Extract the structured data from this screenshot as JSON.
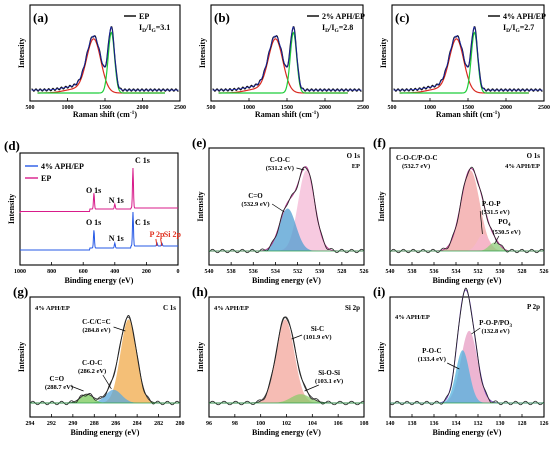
{
  "colors": {
    "raman_fit_red": "#d92b22",
    "raman_fit_green": "#1fce3a",
    "raman_data": "#111111",
    "raman_ep_line": "#1c2bd0",
    "survey_ep": "#d81b8a",
    "survey_aph": "#2659e6",
    "o1s_ep_main": "#f4b8d6",
    "o1s_ep_sub": "#4f9ed1",
    "o1s_aph_main": "#f2a2a2",
    "o1s_aph_pop": "#f6b7cf",
    "o1s_aph_po4": "#8fcc7a",
    "c1s_main": "#f0a94a",
    "c1s_coc": "#5ba8dc",
    "c1s_co": "#7ac95a",
    "si2p_main": "#f3a59b",
    "si2p_sio": "#8cc96b",
    "p2p_pop": "#e79cc3",
    "p2p_poc": "#52b2de"
  },
  "panels": {
    "a": {
      "label": "(a)",
      "legend": "EP",
      "ratio_sub": "D",
      "ratio_sub2": "G",
      "ratio_val": "=3.1"
    },
    "b": {
      "label": "(b)",
      "legend": "2% APH/EP",
      "ratio_sub": "D",
      "ratio_sub2": "G",
      "ratio_val": "=2.8"
    },
    "c": {
      "label": "(c)",
      "legend": "4% APH/EP",
      "ratio_sub": "D",
      "ratio_sub2": "G",
      "ratio_val": "=2.7"
    },
    "d": {
      "label": "(d)"
    },
    "e": {
      "label": "(e)"
    },
    "f": {
      "label": "(f)"
    },
    "g": {
      "label": "(g)"
    },
    "h": {
      "label": "(h)"
    },
    "i": {
      "label": "(i)"
    }
  },
  "chart_data": [
    {
      "panel": "a",
      "type": "line",
      "xlabel": "Raman shift (cm⁻¹)",
      "ylabel": "Intensity",
      "xlim": [
        500,
        2500
      ],
      "xticks": [
        500,
        1000,
        1500,
        2000,
        2500
      ],
      "I_D_over_I_G": 3.1,
      "series": [
        {
          "name": "EP",
          "x": [
            500,
            900,
            1000,
            1100,
            1200,
            1300,
            1350,
            1400,
            1450,
            1500,
            1550,
            1590,
            1650,
            1700,
            1800,
            2000,
            2500
          ],
          "y": [
            0.05,
            0.08,
            0.12,
            0.25,
            0.48,
            0.7,
            0.74,
            0.66,
            0.56,
            0.66,
            0.9,
            0.98,
            0.55,
            0.25,
            0.1,
            0.06,
            0.05
          ]
        }
      ]
    },
    {
      "panel": "b",
      "type": "line",
      "xlabel": "Raman shift (cm⁻¹)",
      "ylabel": "Intensity",
      "xlim": [
        500,
        2500
      ],
      "xticks": [
        500,
        1000,
        1500,
        2000,
        2500
      ],
      "I_D_over_I_G": 2.8,
      "series": [
        {
          "name": "2% APH/EP",
          "x": [
            500,
            900,
            1000,
            1100,
            1200,
            1300,
            1350,
            1400,
            1450,
            1500,
            1550,
            1590,
            1650,
            1700,
            1800,
            2000,
            2500
          ],
          "y": [
            0.05,
            0.07,
            0.1,
            0.22,
            0.45,
            0.68,
            0.73,
            0.66,
            0.55,
            0.64,
            0.88,
            0.98,
            0.55,
            0.25,
            0.1,
            0.06,
            0.05
          ]
        }
      ]
    },
    {
      "panel": "c",
      "type": "line",
      "xlabel": "Raman shift (cm⁻¹)",
      "ylabel": "Intensity",
      "xlim": [
        500,
        2500
      ],
      "xticks": [
        500,
        1000,
        1500,
        2000,
        2500
      ],
      "I_D_over_I_G": 2.7,
      "series": [
        {
          "name": "4% APH/EP",
          "x": [
            500,
            900,
            1000,
            1100,
            1200,
            1300,
            1350,
            1400,
            1450,
            1500,
            1550,
            1590,
            1650,
            1700,
            1800,
            2000,
            2500
          ],
          "y": [
            0.06,
            0.07,
            0.1,
            0.22,
            0.44,
            0.68,
            0.72,
            0.65,
            0.56,
            0.66,
            0.9,
            0.98,
            0.55,
            0.25,
            0.1,
            0.06,
            0.05
          ]
        }
      ]
    },
    {
      "panel": "d",
      "type": "line",
      "xlabel": "Binding energy (eV)",
      "ylabel": "Intensity",
      "xlim": [
        1000,
        0
      ],
      "xticks": [
        1000,
        800,
        600,
        400,
        200,
        0
      ],
      "series": [
        {
          "name": "4% APH/EP",
          "peaks": [
            "O 1s",
            "N 1s",
            "C 1s",
            "P 2p",
            "Si 2p"
          ]
        },
        {
          "name": "EP",
          "peaks": [
            "O 1s",
            "N 1s",
            "C 1s"
          ]
        }
      ],
      "annotations": [
        "C 1s",
        "O 1s",
        "N 1s",
        "O 1s",
        "N 1s",
        "C 1s",
        "P 2p",
        "Si 2p"
      ]
    },
    {
      "panel": "e",
      "type": "line",
      "xlabel": "Binding energy (eV)",
      "ylabel": "Intensity",
      "xlim": [
        540,
        526
      ],
      "xticks": [
        540,
        538,
        536,
        534,
        532,
        530,
        528,
        526
      ],
      "title_right": "O 1s",
      "subtitle_right": "EP",
      "peaks": [
        {
          "name": "C-O-C",
          "center": 531.2
        },
        {
          "name": "C=O",
          "center": 532.9
        }
      ]
    },
    {
      "panel": "f",
      "type": "line",
      "xlabel": "Binding energy (eV)",
      "ylabel": "Intensity",
      "xlim": [
        540,
        526
      ],
      "xticks": [
        540,
        538,
        536,
        534,
        532,
        530,
        528,
        526
      ],
      "title_right": "O 1s",
      "subtitle_right": "4% APH/EP",
      "peaks": [
        {
          "name": "C-O-C/P-O-C",
          "center": 532.7
        },
        {
          "name": "P-O-P",
          "center": 531.5
        },
        {
          "name": "PO4",
          "center": 530.5
        }
      ]
    },
    {
      "panel": "g",
      "type": "line",
      "xlabel": "Binding energy (eV)",
      "ylabel": "Intensity",
      "xlim": [
        294,
        280
      ],
      "xticks": [
        294,
        292,
        290,
        288,
        286,
        284,
        282,
        280
      ],
      "title_left": "4% APH/EP",
      "title_right": "C 1s",
      "peaks": [
        {
          "name": "C-C/C=C",
          "center": 284.8
        },
        {
          "name": "C-O-C",
          "center": 286.2
        },
        {
          "name": "C=O",
          "center": 288.7
        }
      ]
    },
    {
      "panel": "h",
      "type": "line",
      "xlabel": "Binding energy (eV)",
      "ylabel": "Intensity",
      "xlim": [
        96,
        108
      ],
      "xticks": [
        96,
        98,
        100,
        102,
        104,
        106,
        108
      ],
      "title_left": "4% APH/EP",
      "title_right": "Si 2p",
      "peaks": [
        {
          "name": "Si-C",
          "center": 101.9
        },
        {
          "name": "Si-O-Si",
          "center": 103.1
        }
      ]
    },
    {
      "panel": "i",
      "type": "line",
      "xlabel": "Binding energy (eV)",
      "ylabel": "Intensity",
      "xlim": [
        140,
        126
      ],
      "xticks": [
        140,
        138,
        136,
        134,
        132,
        130,
        128,
        126
      ],
      "title_left": "4% APH/EP",
      "title_right": "P 2p",
      "peaks": [
        {
          "name": "P-O-P/PO3",
          "center": 132.8
        },
        {
          "name": "P-O-C",
          "center": 133.4
        }
      ]
    }
  ],
  "text": {
    "raman_xlabel": "Raman shift (cm",
    "raman_xlabel_sup": "-1",
    "raman_xlabel_end": ")",
    "ylabel": "Intensity",
    "be_xlabel": "Binding energy (eV)",
    "ratio_I": "I",
    "ratio_slash": "/I",
    "d_legend_1": "4% APH/EP",
    "d_legend_2": "EP",
    "d_c1s_top": "C 1s",
    "d_o1s_a": "O 1s",
    "d_n1s_a": "N 1s",
    "d_o1s_b": "O 1s",
    "d_n1s_b": "N 1s",
    "d_c1s_b": "C 1s",
    "d_p2p": "P 2p",
    "d_si2p": "Si 2p",
    "e_title": "O 1s",
    "e_sub": "EP",
    "e_coc": "C-O-C",
    "e_coc_val": "(531.2 eV)",
    "e_co": "C=O",
    "e_co_val": "(532.9 eV)",
    "f_title": "O 1s",
    "f_sub": "4% APH/EP",
    "f_cocpoc": "C-O-C/P-O-C",
    "f_cocpoc_val": "(532.7 eV)",
    "f_pop": "P-O-P",
    "f_pop_val": "(531.5 eV)",
    "f_po4": "PO",
    "f_po4_sub": "4",
    "f_po4_val": "(530.5 eV)",
    "g_left": "4% APH/EP",
    "g_right": "C 1s",
    "g_cc": "C-C/C=C",
    "g_cc_val": "(284.8 eV)",
    "g_coc": "C-O-C",
    "g_coc_val": "(286.2 eV)",
    "g_co": "C=O",
    "g_co_val": "(288.7 eV)",
    "h_left": "4% APH/EP",
    "h_right": "Si 2p",
    "h_sic": "Si-C",
    "h_sic_val": "(101.9 eV)",
    "h_sio": "Si-O-Si",
    "h_sio_val": "(103.1 eV)",
    "i_left": "4% APH/EP",
    "i_right": "P 2p",
    "i_pop": "P-O-P/PO",
    "i_pop_sub": "3",
    "i_pop_val": "(132.8 eV)",
    "i_poc": "P-O-C",
    "i_poc_val": "(133.4 eV)"
  }
}
